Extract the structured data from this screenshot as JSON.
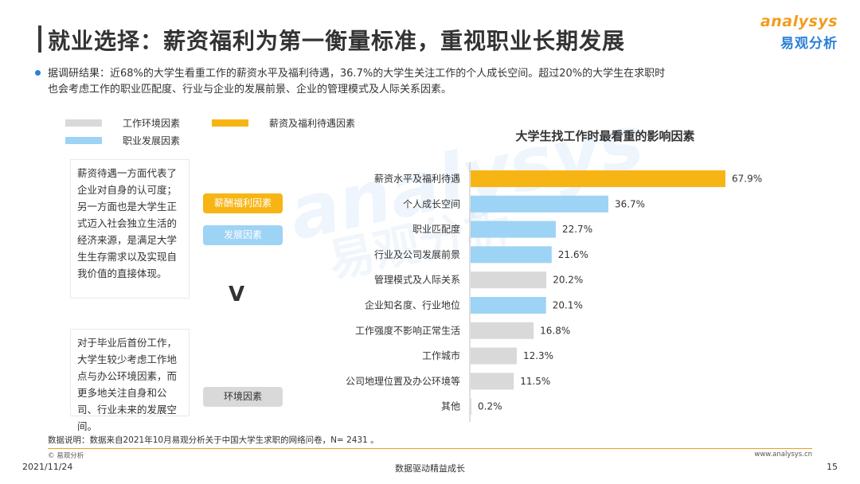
{
  "header": {
    "title": "就业选择：薪资福利为第一衡量标准，重视职业长期发展",
    "logo_en": "analysys",
    "logo_cn": "易观分析"
  },
  "summary": {
    "line1": "据调研结果：近68%的大学生看重工作的薪资水平及福利待遇，36.7%的大学生关注工作的个人成长空间。超过20%的大学生在求职时",
    "line2": "也会考虑工作的职业匹配度、行业与企业的发展前景、企业的管理模式及人际关系因素。"
  },
  "legend": [
    {
      "label": "工作环境因素",
      "color": "#d9d9d9"
    },
    {
      "label": "薪资及福利待遇因素",
      "color": "#f7b515"
    },
    {
      "label": "职业发展因素",
      "color": "#9dd3f5"
    }
  ],
  "notes": {
    "note1": "薪资待遇一方面代表了企业对自身的认可度；另一方面也是大学生正式迈入社会独立生活的经济来源，是满足大学生生存需求以及实现自我价值的直接体现。",
    "note2": "对于毕业后首份工作，大学生较少考虑工作地点与办公环境因素，而更多地关注自身和公司、行业未来的发展空间。"
  },
  "tags": {
    "salary": "薪酬福利因素",
    "career": "发展因素",
    "vs": "V",
    "environment": "环境因素"
  },
  "colors": {
    "salary": "#f7b515",
    "career": "#9dd3f5",
    "environment": "#d9d9d9",
    "accent_blue": "#2b7fd9",
    "accent_orange": "#f29c1f"
  },
  "chart_data": {
    "type": "bar",
    "orientation": "horizontal",
    "title": "大学生找工作时最看重的影响因素",
    "categories": [
      "薪资水平及福利待遇",
      "个人成长空间",
      "职业匹配度",
      "行业及公司发展前景",
      "管理模式及人际关系",
      "企业知名度、行业地位",
      "工作强度不影响正常生活",
      "工作城市",
      "公司地理位置及办公环境等",
      "其他"
    ],
    "values": [
      67.9,
      36.7,
      22.7,
      21.6,
      20.2,
      20.1,
      16.8,
      12.3,
      11.5,
      0.2
    ],
    "value_labels": [
      "67.9%",
      "36.7%",
      "22.7%",
      "21.6%",
      "20.2%",
      "20.1%",
      "16.8%",
      "12.3%",
      "11.5%",
      "0.2%"
    ],
    "groups": [
      "salary",
      "career",
      "career",
      "career",
      "environment",
      "career",
      "environment",
      "environment",
      "environment",
      "environment"
    ],
    "xlim": [
      0,
      67.9
    ],
    "grid": false
  },
  "footer": {
    "note": "数据说明：数据来自2021年10月易观分析关于中国大学生求职的网络问卷，N= 2431 。",
    "copyright": "© 易观分析",
    "url": "www.analysys.cn",
    "date": "2021/11/24",
    "slogan": "数据驱动精益成长",
    "page": "15"
  },
  "watermark": {
    "en": "analysys",
    "cn": "易观分析"
  }
}
